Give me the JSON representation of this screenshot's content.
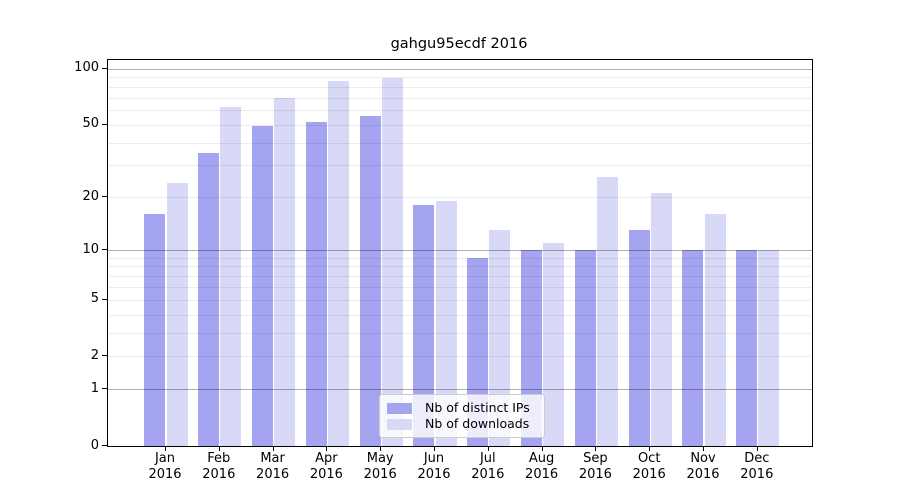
{
  "title": "gahgu95ecdf 2016",
  "chart_data": {
    "type": "bar",
    "title": "gahgu95ecdf 2016",
    "year_label": "2016",
    "categories": [
      "Jan",
      "Feb",
      "Mar",
      "Apr",
      "May",
      "Jun",
      "Jul",
      "Aug",
      "Sep",
      "Oct",
      "Nov",
      "Dec"
    ],
    "series": [
      {
        "name": "Nb of distinct IPs",
        "color": "#a4a4f0",
        "values": [
          16,
          35,
          49,
          52,
          56,
          18,
          9,
          10,
          10,
          13,
          10,
          10
        ]
      },
      {
        "name": "Nb of downloads",
        "color": "#d8d8f7",
        "values": [
          24,
          62,
          70,
          86,
          89,
          19,
          13,
          11,
          26,
          21,
          16,
          10
        ]
      }
    ],
    "xlabel": "",
    "ylabel": "",
    "y_axis": {
      "scale": "log10(1+v)",
      "tick_labels": [
        "100",
        "50",
        "20",
        "10",
        "5",
        "2",
        "1",
        "0"
      ],
      "tick_values": [
        100,
        50,
        20,
        10,
        5,
        2,
        1,
        0
      ],
      "major_grid_values": [
        1,
        10,
        100
      ],
      "ylim": [
        0,
        112
      ]
    },
    "grid": true,
    "legend_position": "lower-center",
    "colors": {
      "major_grid": "#b0b0b0",
      "minor_grid": "#ebebeb",
      "spine": "#000000",
      "background": "#ffffff",
      "legend_border": "#cccccc"
    }
  }
}
